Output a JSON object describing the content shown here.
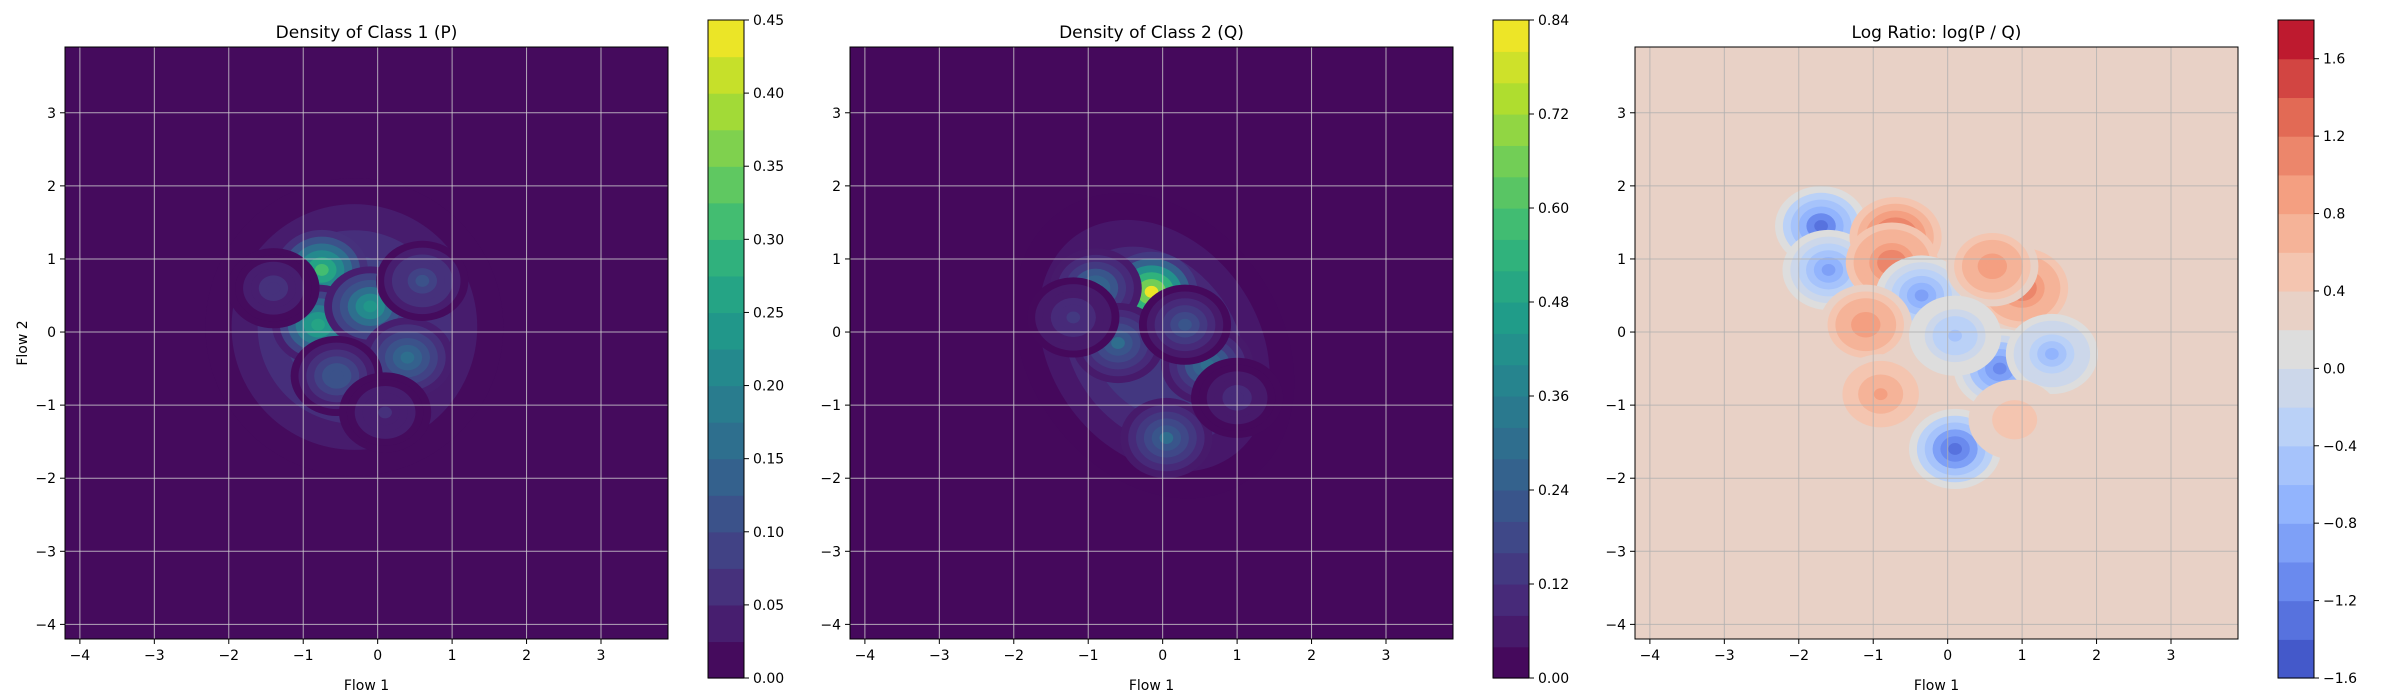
{
  "chart_data": [
    {
      "type": "heatmap",
      "title": "Density of Class 1 (P)",
      "xlabel": "Flow 1",
      "ylabel": "Flow 2",
      "xlim": [
        -4.2,
        3.9
      ],
      "ylim": [
        -4.2,
        3.9
      ],
      "xticks": [
        -4,
        -3,
        -2,
        -1,
        0,
        1,
        2,
        3
      ],
      "yticks": [
        -4,
        -3,
        -2,
        -1,
        0,
        1,
        2,
        3
      ],
      "grid": true,
      "colormap": "viridis",
      "colorbar": {
        "min": 0.0,
        "max": 0.45,
        "ticks": [
          "0.00",
          "0.05",
          "0.10",
          "0.15",
          "0.20",
          "0.25",
          "0.30",
          "0.35",
          "0.40",
          "0.45"
        ],
        "levels": 18
      },
      "peaks": [
        {
          "x": -0.75,
          "y": 0.85,
          "value": 0.3
        },
        {
          "x": -0.8,
          "y": 0.1,
          "value": 0.27
        },
        {
          "x": -0.1,
          "y": 0.35,
          "value": 0.24
        },
        {
          "x": 0.4,
          "y": -0.35,
          "value": 0.16
        },
        {
          "x": -0.55,
          "y": -0.6,
          "value": 0.12
        },
        {
          "x": 0.6,
          "y": 0.7,
          "value": 0.11
        },
        {
          "x": -1.4,
          "y": 0.6,
          "value": 0.06
        },
        {
          "x": 0.1,
          "y": -1.1,
          "value": 0.05
        }
      ]
    },
    {
      "type": "heatmap",
      "title": "Density of Class 2 (Q)",
      "xlabel": "Flow 1",
      "ylabel": "",
      "xlim": [
        -4.2,
        3.9
      ],
      "ylim": [
        -4.2,
        3.9
      ],
      "xticks": [
        -4,
        -3,
        -2,
        -1,
        0,
        1,
        2,
        3
      ],
      "yticks": [
        -4,
        -3,
        -2,
        -1,
        0,
        1,
        2,
        3
      ],
      "grid": true,
      "colormap": "viridis",
      "colorbar": {
        "min": 0.0,
        "max": 0.84,
        "ticks": [
          "0.00",
          "0.12",
          "0.24",
          "0.36",
          "0.48",
          "0.60",
          "0.72",
          "0.84"
        ],
        "levels": 21
      },
      "peaks": [
        {
          "x": -0.15,
          "y": 0.55,
          "value": 0.8
        },
        {
          "x": -0.9,
          "y": 0.6,
          "value": 0.3
        },
        {
          "x": -0.6,
          "y": -0.15,
          "value": 0.28
        },
        {
          "x": 0.6,
          "y": -0.45,
          "value": 0.3
        },
        {
          "x": 0.05,
          "y": -1.45,
          "value": 0.28
        },
        {
          "x": 0.3,
          "y": 0.1,
          "value": 0.22
        },
        {
          "x": -1.2,
          "y": 0.2,
          "value": 0.12
        },
        {
          "x": 1.0,
          "y": -0.9,
          "value": 0.1
        }
      ]
    },
    {
      "type": "heatmap",
      "title": "Log Ratio: log(P / Q)",
      "xlabel": "Flow 1",
      "ylabel": "",
      "xlim": [
        -4.2,
        3.9
      ],
      "ylim": [
        -4.2,
        3.9
      ],
      "xticks": [
        -4,
        -3,
        -2,
        -1,
        0,
        1,
        2,
        3
      ],
      "yticks": [
        -4,
        -3,
        -2,
        -1,
        0,
        1,
        2,
        3
      ],
      "grid": true,
      "colormap": "coolwarm",
      "colorbar": {
        "min": -1.6,
        "max": 1.8,
        "ticks": [
          "-1.6",
          "-1.2",
          "-0.8",
          "-0.4",
          "0.0",
          "0.4",
          "0.8",
          "1.2",
          "1.6"
        ],
        "levels": 17
      },
      "background_value": 0.3,
      "peaks": [
        {
          "x": -1.7,
          "y": 1.45,
          "value": -1.3
        },
        {
          "x": -1.6,
          "y": 0.85,
          "value": -1.0
        },
        {
          "x": -0.7,
          "y": 1.3,
          "value": 1.4
        },
        {
          "x": -0.75,
          "y": 0.95,
          "value": 1.2
        },
        {
          "x": -0.35,
          "y": 0.5,
          "value": -0.9
        },
        {
          "x": 1.0,
          "y": 0.6,
          "value": 1.2
        },
        {
          "x": 0.6,
          "y": 0.9,
          "value": 0.9
        },
        {
          "x": -1.1,
          "y": 0.1,
          "value": 0.9
        },
        {
          "x": 0.7,
          "y": -0.5,
          "value": -1.1
        },
        {
          "x": 1.4,
          "y": -0.3,
          "value": -0.7
        },
        {
          "x": -0.9,
          "y": -0.85,
          "value": 0.8
        },
        {
          "x": 0.1,
          "y": -1.6,
          "value": -1.4
        },
        {
          "x": 0.1,
          "y": -0.05,
          "value": -0.5
        },
        {
          "x": 0.9,
          "y": -1.2,
          "value": 0.5
        }
      ]
    }
  ]
}
